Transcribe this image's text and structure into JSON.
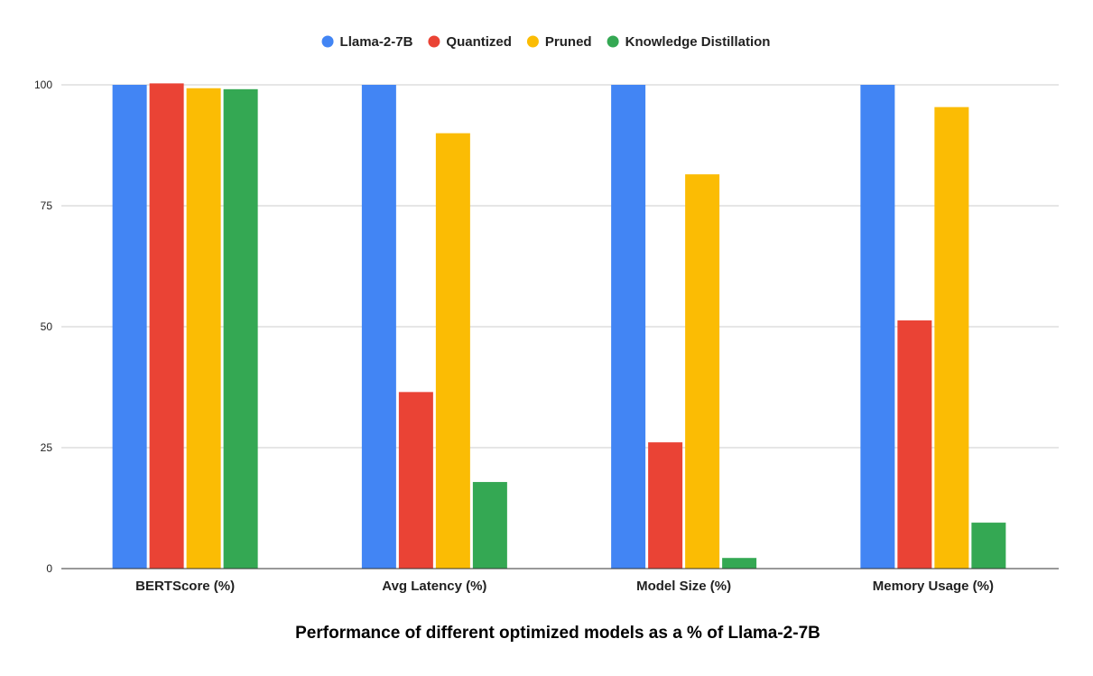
{
  "chart_data": {
    "type": "bar",
    "title": "Performance of different optimized models as a % of Llama-2-7B",
    "xlabel": "",
    "ylabel": "",
    "categories": [
      "BERTScore (%)",
      "Avg Latency (%)",
      "Model Size (%)",
      "Memory Usage (%)"
    ],
    "series": [
      {
        "name": "Llama-2-7B",
        "color": "#4285F4",
        "values": [
          100,
          100,
          100,
          100
        ]
      },
      {
        "name": "Quantized",
        "color": "#EA4335",
        "values": [
          100.3,
          36.5,
          26.1,
          51.3
        ]
      },
      {
        "name": "Pruned",
        "color": "#FBBC04",
        "values": [
          99.3,
          90,
          81.5,
          95.4
        ]
      },
      {
        "name": "Knowledge Distillation",
        "color": "#34A853",
        "values": [
          99.1,
          17.9,
          2.2,
          9.5
        ]
      }
    ],
    "ylim": [
      0,
      100
    ],
    "yticks": [
      "0",
      "25",
      "50",
      "75",
      "100"
    ],
    "grid": true,
    "legend_position": "top"
  }
}
